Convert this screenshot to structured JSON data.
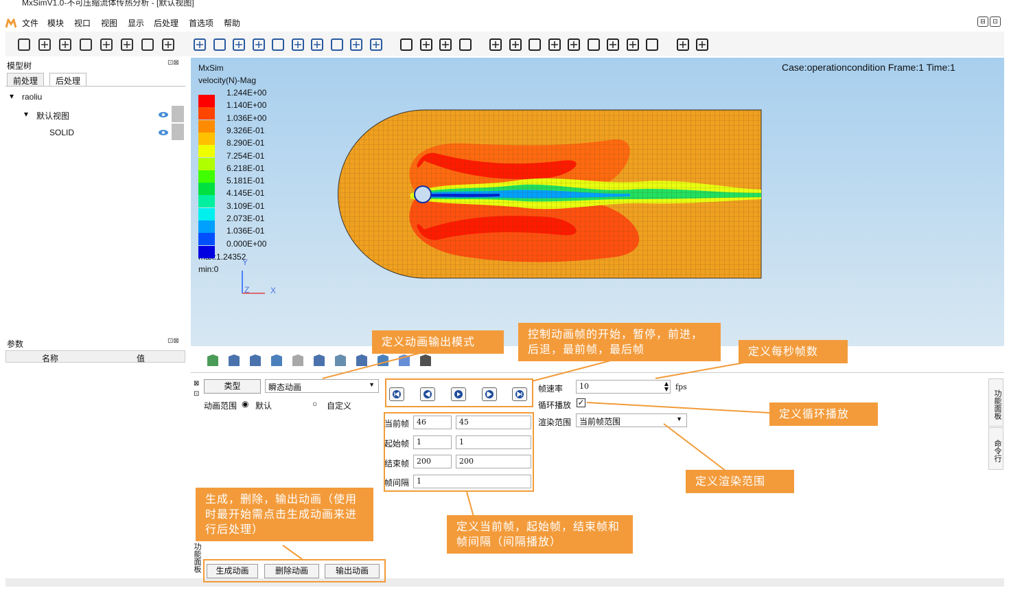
{
  "window": {
    "title": "MxSimV1.0-不可压缩流体传热分析 - [默认视图]"
  },
  "menu": [
    "文件",
    "模块",
    "视口",
    "视图",
    "显示",
    "后处理",
    "首选项",
    "帮助"
  ],
  "window_buttons": [
    "⊟",
    "⊡"
  ],
  "model_tree": {
    "title": "模型树",
    "tabs": [
      "前处理",
      "后处理"
    ],
    "root": "raoliu",
    "view": "默认视图",
    "solid": "SOLID"
  },
  "params": {
    "title": "参数",
    "col_name": "名称",
    "col_value": "值"
  },
  "viewport": {
    "brand": "MxSim",
    "field": "velocity(N)-Mag",
    "case_info": "Case:operationcondition Frame:1 Time:1",
    "legend_labels": [
      "1.244E+00",
      "1.140E+00",
      "1.036E+00",
      "9.326E-01",
      "8.290E-01",
      "7.254E-01",
      "6.218E-01",
      "5.181E-01",
      "4.145E-01",
      "3.109E-01",
      "2.073E-01",
      "1.036E-01",
      "0.000E+00"
    ],
    "legend_colors": [
      "#ff0000",
      "#ff4500",
      "#ff8c00",
      "#ffc000",
      "#f0ff00",
      "#b0ff00",
      "#40ff00",
      "#00e040",
      "#00f0a0",
      "#00f0f0",
      "#00a0ff",
      "#0050ff",
      "#0000e0"
    ],
    "max": "max:1.24352",
    "min": "min:0",
    "axes": {
      "y": "Y",
      "z": "Z",
      "x": "X"
    }
  },
  "animation": {
    "type_label": "类型",
    "type_value": "瞬态动画",
    "range_label": "动画范围",
    "range_default": "默认",
    "range_custom": "自定义",
    "current_frame_label": "当前帧",
    "current_frame": "46",
    "current_frame_2": "45",
    "start_frame_label": "起始帧",
    "start_frame": "1",
    "start_frame_2": "1",
    "end_frame_label": "结束帧",
    "end_frame": "200",
    "end_frame_2": "200",
    "interval_label": "帧间隔",
    "interval": "1",
    "fps_label": "帧速率",
    "fps_value": "10",
    "fps_unit": "fps",
    "loop_label": "循环播放",
    "render_label": "渲染范围",
    "render_value": "当前帧范围",
    "btn_generate": "生成动画",
    "btn_delete": "删除动画",
    "btn_export": "输出动画",
    "panel_side_label": "功能面板"
  },
  "side_tabs": [
    "功能面板",
    "命令行"
  ],
  "callouts": {
    "output_mode": "定义动画输出模式",
    "frame_control": "控制动画帧的开始，暂停，前进，后退，最前帧，最后帧",
    "fps": "定义每秒帧数",
    "loop": "定义循环播放",
    "render_range": "定义渲染范围",
    "frames": "定义当前帧，起始帧，结束帧和帧间隔（间隔播放）",
    "generate": "生成，删除，输出动画（使用时最开始需点击生成动画来进行后处理）"
  },
  "icons": {
    "toolbar": [
      "new-file-icon",
      "open-icon",
      "save-icon",
      "import-icon",
      "export-icon",
      "mesh-icon",
      "present-icon",
      "screen-icon",
      "select-icon",
      "fit-icon",
      "target-icon",
      "rotate-icon",
      "rotate-y-icon",
      "rotate-90-icon",
      "rotate-neg90-icon",
      "reset-icon",
      "zoom-out-icon",
      "zoom-in-icon",
      "view-wire-icon",
      "view-grid-icon",
      "view-solid-icon",
      "view-mesh-icon",
      "view-front-icon",
      "view-back-icon",
      "view-left-icon",
      "view-right-icon",
      "view-top-icon",
      "view-bottom-icon",
      "axis-iso-icon",
      "axis-y-icon",
      "axis-z-icon",
      "layout-icon",
      "layers-icon"
    ]
  }
}
